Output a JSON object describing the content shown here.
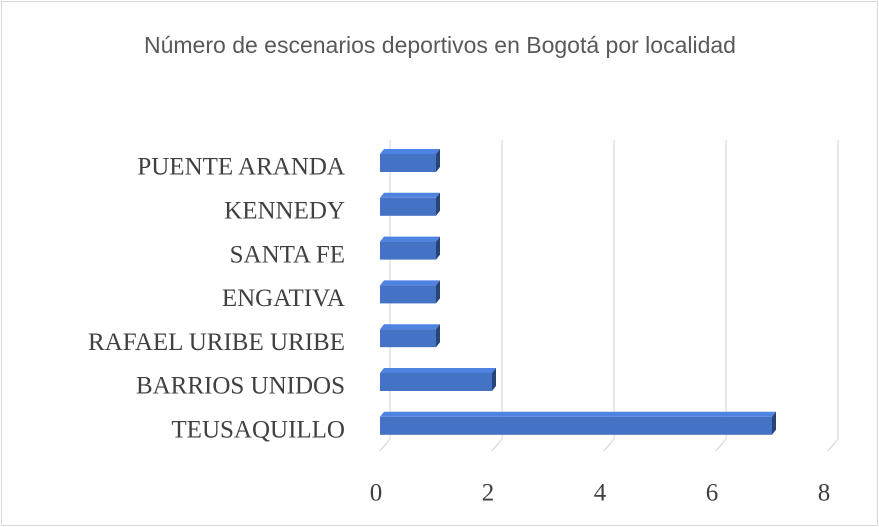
{
  "chart_data": {
    "type": "bar",
    "orientation": "horizontal",
    "title": "Número de escenarios deportivos en Bogotá por localidad",
    "categories": [
      "PUENTE ARANDA",
      "KENNEDY",
      "SANTA FE",
      "ENGATIVA",
      "RAFAEL URIBE URIBE",
      "BARRIOS UNIDOS",
      "TEUSAQUILLO"
    ],
    "values": [
      1,
      1,
      1,
      1,
      1,
      2,
      7
    ],
    "color": "#4472c4",
    "xlim": [
      0,
      8
    ],
    "xticks": [
      0,
      2,
      4,
      6,
      8
    ],
    "grid": true
  }
}
